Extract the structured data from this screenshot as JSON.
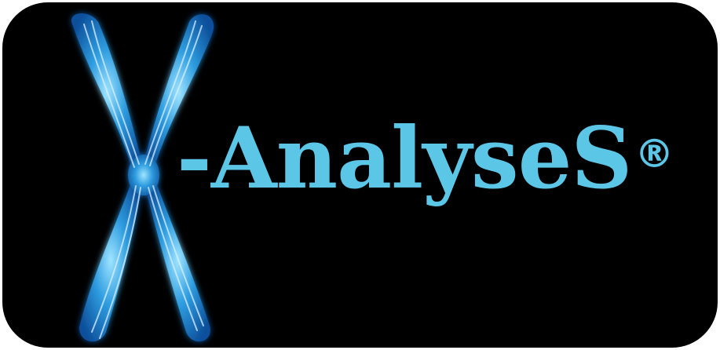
{
  "logo": {
    "wordmark": "-AnalyseS",
    "registered_mark": "®"
  },
  "colors": {
    "background": "#000000",
    "wordmark": "#5cc6e6",
    "chromosome_core": "#1f8fd6",
    "chromosome_glow": "#6fd3ff",
    "chromatid_strand": "#d7efff"
  },
  "icons": {
    "chromosome": "x-chromosome-icon"
  }
}
